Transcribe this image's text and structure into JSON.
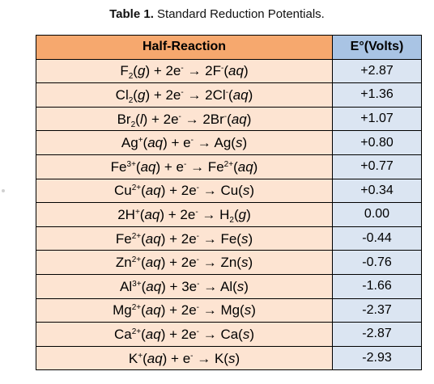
{
  "caption": {
    "label": "Table 1.",
    "text": "Standard Reduction Potentials."
  },
  "table": {
    "headers": [
      "Half-Reaction",
      "E°(Volts)"
    ],
    "rows": [
      {
        "segments": [
          [
            "F"
          ],
          [
            "2",
            "sub"
          ],
          [
            "("
          ],
          [
            "g",
            "i"
          ],
          [
            ") + 2e"
          ],
          [
            "-",
            "sup"
          ],
          [
            " → 2F"
          ],
          [
            "-",
            "sup"
          ],
          [
            "("
          ],
          [
            "aq",
            "i"
          ],
          [
            ")"
          ]
        ],
        "value": "+2.87"
      },
      {
        "segments": [
          [
            "Cl"
          ],
          [
            "2",
            "sub"
          ],
          [
            "("
          ],
          [
            "g",
            "i"
          ],
          [
            ") + 2e"
          ],
          [
            "-",
            "sup"
          ],
          [
            " → 2Cl"
          ],
          [
            "-",
            "sup"
          ],
          [
            "("
          ],
          [
            "aq",
            "i"
          ],
          [
            ")"
          ]
        ],
        "value": "+1.36"
      },
      {
        "segments": [
          [
            "Br"
          ],
          [
            "2",
            "sub"
          ],
          [
            "("
          ],
          [
            "l",
            "i"
          ],
          [
            ") + 2e"
          ],
          [
            "-",
            "sup"
          ],
          [
            " → 2Br"
          ],
          [
            "-",
            "sup"
          ],
          [
            "("
          ],
          [
            "aq",
            "i"
          ],
          [
            ")"
          ]
        ],
        "value": "+1.07"
      },
      {
        "segments": [
          [
            "Ag"
          ],
          [
            "+",
            "sup"
          ],
          [
            "("
          ],
          [
            "aq",
            "i"
          ],
          [
            ") + e"
          ],
          [
            "-",
            "sup"
          ],
          [
            " → Ag("
          ],
          [
            "s",
            "i"
          ],
          [
            ")"
          ]
        ],
        "value": "+0.80"
      },
      {
        "segments": [
          [
            "Fe"
          ],
          [
            "3+",
            "sup"
          ],
          [
            "("
          ],
          [
            "aq",
            "i"
          ],
          [
            ") + e"
          ],
          [
            "-",
            "sup"
          ],
          [
            " → Fe"
          ],
          [
            "2+",
            "sup"
          ],
          [
            "("
          ],
          [
            "aq",
            "i"
          ],
          [
            ")"
          ]
        ],
        "value": "+0.77"
      },
      {
        "segments": [
          [
            "Cu"
          ],
          [
            "2+",
            "sup"
          ],
          [
            "("
          ],
          [
            "aq",
            "i"
          ],
          [
            ") + 2e"
          ],
          [
            "-",
            "sup"
          ],
          [
            " → Cu("
          ],
          [
            "s",
            "i"
          ],
          [
            ")"
          ]
        ],
        "value": "+0.34"
      },
      {
        "segments": [
          [
            "2H"
          ],
          [
            "+",
            "sup"
          ],
          [
            "("
          ],
          [
            "aq",
            "i"
          ],
          [
            ") + 2e"
          ],
          [
            "-",
            "sup"
          ],
          [
            " → H"
          ],
          [
            "2",
            "sub"
          ],
          [
            "("
          ],
          [
            "g",
            "i"
          ],
          [
            ")"
          ]
        ],
        "value": "0.00"
      },
      {
        "segments": [
          [
            "Fe"
          ],
          [
            "2+",
            "sup"
          ],
          [
            "("
          ],
          [
            "aq",
            "i"
          ],
          [
            ") + 2e"
          ],
          [
            "-",
            "sup"
          ],
          [
            " → Fe("
          ],
          [
            "s",
            "i"
          ],
          [
            ")"
          ]
        ],
        "value": "-0.44"
      },
      {
        "segments": [
          [
            "Zn"
          ],
          [
            "2+",
            "sup"
          ],
          [
            "("
          ],
          [
            "aq",
            "i"
          ],
          [
            ") + 2e"
          ],
          [
            "-",
            "sup"
          ],
          [
            " → Zn("
          ],
          [
            "s",
            "i"
          ],
          [
            ")"
          ]
        ],
        "value": "-0.76"
      },
      {
        "segments": [
          [
            "Al"
          ],
          [
            "3+",
            "sup"
          ],
          [
            "("
          ],
          [
            "aq",
            "i"
          ],
          [
            ") + 3e"
          ],
          [
            "-",
            "sup"
          ],
          [
            " → Al("
          ],
          [
            "s",
            "i"
          ],
          [
            ")"
          ]
        ],
        "value": "-1.66"
      },
      {
        "segments": [
          [
            "Mg"
          ],
          [
            "2+",
            "sup"
          ],
          [
            "("
          ],
          [
            "aq",
            "i"
          ],
          [
            ") + 2e"
          ],
          [
            "-",
            "sup"
          ],
          [
            " → Mg("
          ],
          [
            "s",
            "i"
          ],
          [
            ")"
          ]
        ],
        "value": "-2.37"
      },
      {
        "segments": [
          [
            "Ca"
          ],
          [
            "2+",
            "sup"
          ],
          [
            "("
          ],
          [
            "aq",
            "i"
          ],
          [
            ") + 2e"
          ],
          [
            "-",
            "sup"
          ],
          [
            " → Ca("
          ],
          [
            "s",
            "i"
          ],
          [
            ")"
          ]
        ],
        "value": "-2.87"
      },
      {
        "segments": [
          [
            "K"
          ],
          [
            "+",
            "sup"
          ],
          [
            "("
          ],
          [
            "aq",
            "i"
          ],
          [
            ") + e"
          ],
          [
            "-",
            "sup"
          ],
          [
            " → K("
          ],
          [
            "s",
            "i"
          ],
          [
            ")"
          ]
        ],
        "value": "-2.93"
      }
    ]
  },
  "colors": {
    "header_reaction_bg": "#f6a86e",
    "header_value_bg": "#a9c4e4",
    "cell_reaction_bg": "#fde4d2",
    "cell_value_bg": "#dbe5f2",
    "border": "#000000"
  }
}
